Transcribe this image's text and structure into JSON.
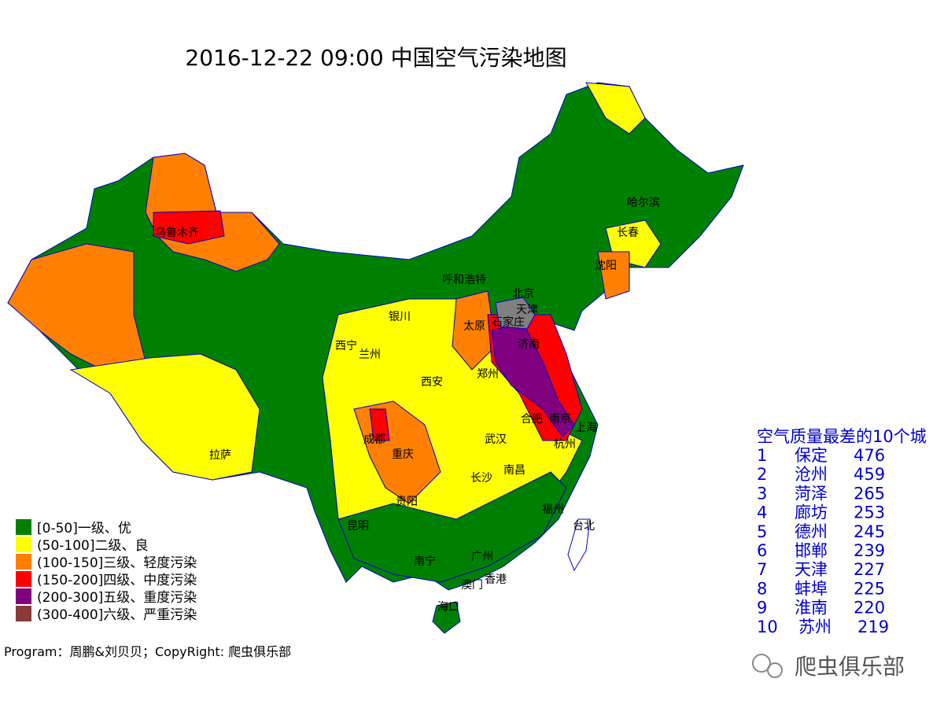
{
  "title": "2016-12-22 09:00 中国空气污染地图",
  "cities": [
    "乌鲁木齐",
    "哈尔滨",
    "长春",
    "沈阳",
    "呼和浩特",
    "北京",
    "天津",
    "石家庄",
    "太原",
    "银川",
    "西宁",
    "兰州",
    "济南",
    "郑州",
    "西安",
    "合肥",
    "南京",
    "上海",
    "杭州",
    "成都",
    "重庆",
    "武汉",
    "南昌",
    "长沙",
    "贵阳",
    "昆明",
    "福州",
    "台北",
    "南宁",
    "广州",
    "澳门",
    "香港",
    "海口",
    "拉萨"
  ],
  "legend": [
    {
      "label": "[0-50]一级、优",
      "color": "#008000"
    },
    {
      "label": "(50-100]二级、良",
      "color": "#ffff00"
    },
    {
      "label": "(100-150]三级、轻度污染",
      "color": "#ff8000"
    },
    {
      "label": "(150-200]四级、中度污染",
      "color": "#ff0000"
    },
    {
      "label": "(200-300]五级、重度污染",
      "color": "#800080"
    },
    {
      "label": "(300-400]六级、严重污染",
      "color": "#8b3a3a"
    }
  ],
  "ranking": {
    "title": "空气质量最差的10个城",
    "rows": [
      {
        "rank": 1,
        "city": "保定",
        "aqi": 476
      },
      {
        "rank": 2,
        "city": "沧州",
        "aqi": 459
      },
      {
        "rank": 3,
        "city": "菏泽",
        "aqi": 265
      },
      {
        "rank": 4,
        "city": "廊坊",
        "aqi": 253
      },
      {
        "rank": 5,
        "city": "德州",
        "aqi": 245
      },
      {
        "rank": 6,
        "city": "邯郸",
        "aqi": 239
      },
      {
        "rank": 7,
        "city": "天津",
        "aqi": 227
      },
      {
        "rank": 8,
        "city": "蚌埠",
        "aqi": 225
      },
      {
        "rank": 9,
        "city": "淮南",
        "aqi": 220
      },
      {
        "rank": 10,
        "city": "苏州",
        "aqi": 219
      }
    ]
  },
  "footer": "Program：周鹏&刘贝贝；CopyRight: 爬虫俱乐部",
  "watermark": "爬虫俱乐部"
}
